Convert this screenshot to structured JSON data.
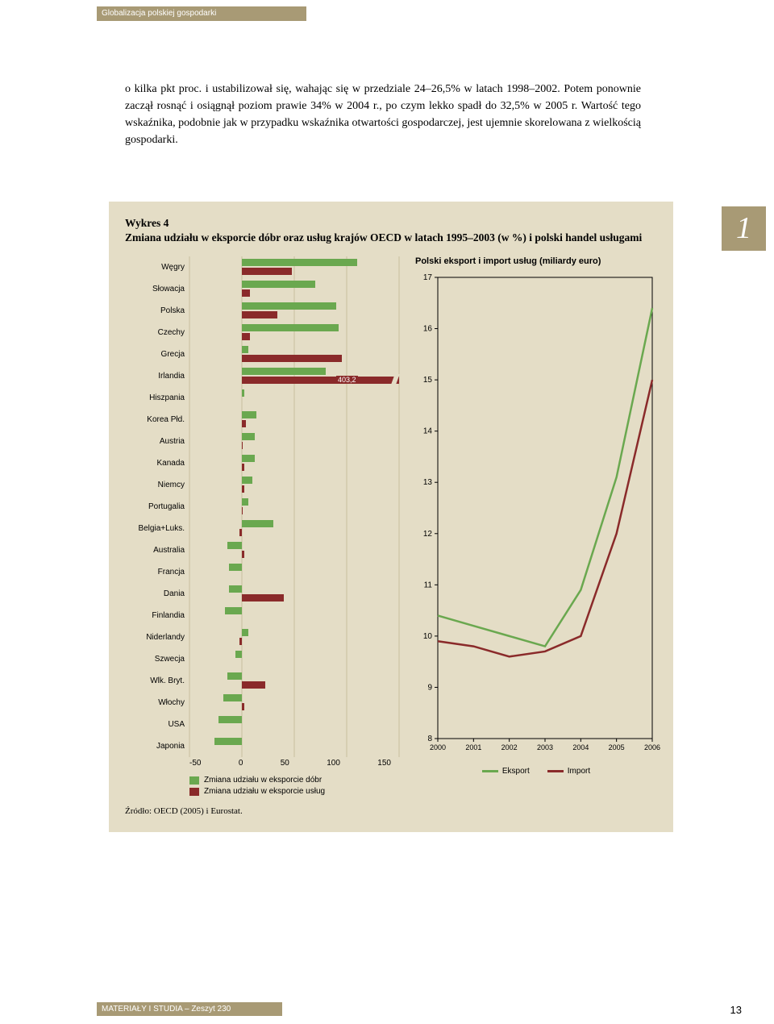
{
  "header": {
    "text": "Globalizacja polskiej gospodarki"
  },
  "paragraph": "o kilka pkt proc. i ustabilizował się, wahając się w przedziale 24–26,5% w latach 1998–2002. Potem ponownie zaczął rosnąć i osiągnął poziom prawie 34% w 2004 r., po czym lekko spadł do 32,5% w 2005 r. Wartość tego wskaźnika, podobnie jak w przypadku wskaźnika otwartości gospodarczej, jest ujemnie skorelowana z wielkością gospodarki.",
  "section_number": "1",
  "chart": {
    "heading_line1": "Wykres 4",
    "heading_line2": "Zmiana udziału w eksporcie dóbr oraz usług krajów OECD w latach 1995–2003 (w %) i polski handel usługami",
    "background_color": "#e4ddc6",
    "bar": {
      "x_min": -50,
      "x_max": 150,
      "x_ticks": [
        "-50",
        "0",
        "50",
        "100",
        "150"
      ],
      "goods_color": "#6aa84f",
      "services_color": "#8a2a2a",
      "outlier_label": "403,2",
      "categories": [
        {
          "label": "Węgry",
          "goods": 110,
          "services": 48
        },
        {
          "label": "Słowacja",
          "goods": 70,
          "services": 8
        },
        {
          "label": "Polska",
          "goods": 90,
          "services": 34
        },
        {
          "label": "Czechy",
          "goods": 92,
          "services": 8
        },
        {
          "label": "Grecja",
          "goods": 6,
          "services": 95
        },
        {
          "label": "Irlandia",
          "goods": 80,
          "services": 403.2
        },
        {
          "label": "Hiszpania",
          "goods": 2,
          "services": 0
        },
        {
          "label": "Korea Płd.",
          "goods": 14,
          "services": 4
        },
        {
          "label": "Austria",
          "goods": 12,
          "services": 1
        },
        {
          "label": "Kanada",
          "goods": 12,
          "services": 2
        },
        {
          "label": "Niemcy",
          "goods": 10,
          "services": 2
        },
        {
          "label": "Portugalia",
          "goods": 6,
          "services": 1
        },
        {
          "label": "Belgia+Luks.",
          "goods": 30,
          "services": -2
        },
        {
          "label": "Australia",
          "goods": -14,
          "services": 2
        },
        {
          "label": "Francja",
          "goods": -12,
          "services": 0
        },
        {
          "label": "Dania",
          "goods": -12,
          "services": 40
        },
        {
          "label": "Finlandia",
          "goods": -16,
          "services": 0
        },
        {
          "label": "Niderlandy",
          "goods": 6,
          "services": -2
        },
        {
          "label": "Szwecja",
          "goods": -6,
          "services": 0
        },
        {
          "label": "Wlk. Bryt.",
          "goods": -14,
          "services": 22
        },
        {
          "label": "Włochy",
          "goods": -18,
          "services": 2
        },
        {
          "label": "USA",
          "goods": -22,
          "services": 0
        },
        {
          "label": "Japonia",
          "goods": -26,
          "services": 0
        }
      ],
      "legend_goods": "Zmiana udziału w eksporcie dóbr",
      "legend_services": "Zmiana udziału w eksporcie usług"
    },
    "line": {
      "title": "Polski eksport i import usług (miliardy euro)",
      "y_min": 8,
      "y_max": 17,
      "y_ticks": [
        8,
        9,
        10,
        11,
        12,
        13,
        14,
        15,
        16,
        17
      ],
      "x_ticks": [
        "2000",
        "2001",
        "2002",
        "2003",
        "2004",
        "2005",
        "2006"
      ],
      "eksport_color": "#6aa84f",
      "import_color": "#8a2a2a",
      "eksport": [
        10.4,
        10.2,
        10.0,
        9.8,
        10.9,
        13.1,
        16.4
      ],
      "import": [
        9.9,
        9.8,
        9.6,
        9.7,
        10.0,
        12.0,
        15.0
      ],
      "legend_eksport": "Eksport",
      "legend_import": "Import"
    },
    "source": "Źródło: OECD (2005) i Eurostat."
  },
  "footer": {
    "text": "MATERIAŁY I STUDIA – Zeszyt 230",
    "page": "13"
  }
}
